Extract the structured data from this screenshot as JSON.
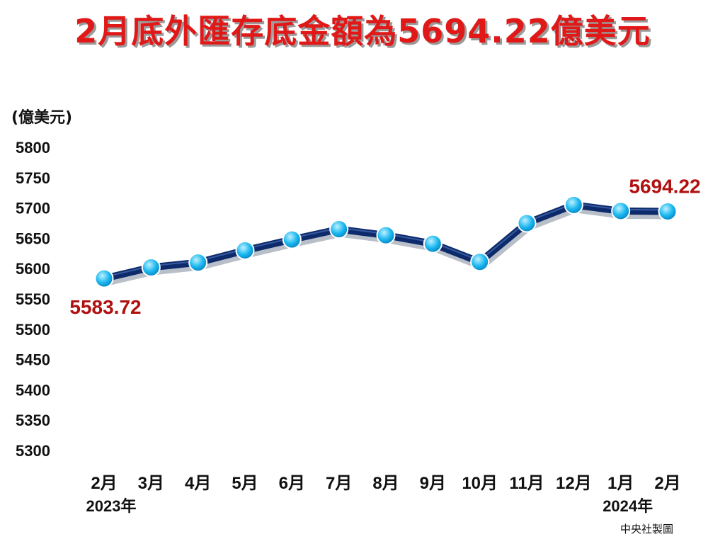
{
  "title": "2月底外匯存底金額為5694.22億美元",
  "unit_label": "(億美元)",
  "credit": "中央社製圖",
  "chart_data": {
    "type": "line",
    "title": "2月底外匯存底金額為5694.22億美元",
    "ylabel": "(億美元)",
    "xlabel": "",
    "ylim": [
      5300,
      5800
    ],
    "yticks": [
      5800,
      5750,
      5700,
      5650,
      5600,
      5550,
      5500,
      5450,
      5400,
      5350,
      5300
    ],
    "categories": [
      "2月",
      "3月",
      "4月",
      "5月",
      "6月",
      "7月",
      "8月",
      "9月",
      "10月",
      "11月",
      "12月",
      "1月",
      "2月"
    ],
    "year_labels": [
      {
        "text": "2023年",
        "category_index": 0
      },
      {
        "text": "2024年",
        "category_index": 11
      }
    ],
    "series": [
      {
        "values": [
          5583.72,
          5602,
          5610,
          5630,
          5648,
          5665,
          5655,
          5641,
          5611,
          5675,
          5705,
          5695,
          5694.22
        ]
      }
    ],
    "annotations": [
      {
        "text": "5583.72",
        "point_index": 0,
        "position": "below"
      },
      {
        "text": "5694.22",
        "point_index": 12,
        "position": "above"
      }
    ],
    "line_color": "#0d2a6b",
    "marker_color": "#1ab8f0",
    "annotation_color": "#b01010",
    "grid": false,
    "legend": "none"
  }
}
